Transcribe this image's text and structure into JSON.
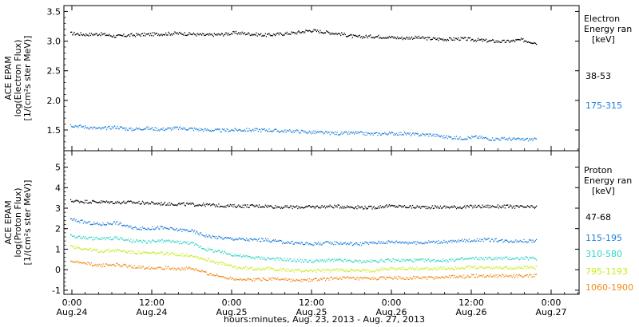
{
  "chart_data": [
    {
      "type": "scatter",
      "panel": "electron",
      "ylabel_lines": [
        "ACE EPAM",
        "log(Electron Flux)",
        "[1/(cm²s ster MeV)]"
      ],
      "ylim": [
        1.15,
        3.6
      ],
      "yticks": [
        1.5,
        2.0,
        2.5,
        3.0,
        3.5
      ],
      "ytick_labels": [
        "1.5",
        "2.0",
        "2.5",
        "3.0",
        "3.5"
      ],
      "legend_title": [
        "Electron",
        "Energy ran",
        "[keV]"
      ],
      "series": [
        {
          "name": "38-53",
          "color": "#000000",
          "values": [
            3.13,
            3.11,
            3.12,
            3.08,
            3.1,
            3.11,
            3.12,
            3.13,
            3.12,
            3.1,
            3.11,
            3.14,
            3.12,
            3.1,
            3.12,
            3.14,
            3.18,
            3.15,
            3.12,
            3.07,
            3.08,
            3.07,
            3.05,
            3.06,
            3.04,
            3.03,
            3.04,
            3.02,
            3.0,
            2.99,
            3.02,
            2.97
          ]
        },
        {
          "name": "175-315",
          "color": "#1E7FD8",
          "values": [
            1.58,
            1.55,
            1.52,
            1.55,
            1.51,
            1.53,
            1.51,
            1.53,
            1.52,
            1.5,
            1.49,
            1.5,
            1.5,
            1.5,
            1.48,
            1.48,
            1.46,
            1.45,
            1.44,
            1.45,
            1.43,
            1.44,
            1.44,
            1.42,
            1.42,
            1.38,
            1.36,
            1.38,
            1.35,
            1.35,
            1.34,
            1.34
          ]
        }
      ]
    },
    {
      "type": "scatter",
      "panel": "proton",
      "ylabel_lines": [
        "ACE EPAM",
        "log(Proton Flux)",
        "[1/(cm²s ster MeV)]"
      ],
      "ylim": [
        -1.2,
        5.8
      ],
      "yticks": [
        -1,
        0,
        1,
        2,
        3,
        4,
        5
      ],
      "ytick_labels": [
        "-1",
        "0",
        "1",
        "2",
        "3",
        "4",
        "5"
      ],
      "legend_title": [
        "Proton",
        "Energy ran",
        "[keV]"
      ],
      "series": [
        {
          "name": "47-68",
          "color": "#000000",
          "values": [
            3.35,
            3.32,
            3.3,
            3.28,
            3.28,
            3.25,
            3.22,
            3.2,
            3.18,
            3.16,
            3.12,
            3.1,
            3.1,
            3.1,
            3.05,
            3.05,
            3.05,
            3.08,
            3.08,
            3.05,
            3.02,
            3.1,
            3.08,
            3.05,
            3.05,
            3.05,
            3.05,
            3.08,
            3.08,
            3.08,
            3.05,
            3.05
          ]
        },
        {
          "name": "115-195",
          "color": "#1E7FD8",
          "values": [
            2.45,
            2.3,
            2.2,
            2.3,
            2.05,
            2.0,
            2.05,
            1.95,
            1.9,
            1.65,
            1.55,
            1.5,
            1.45,
            1.45,
            1.35,
            1.3,
            1.25,
            1.3,
            1.3,
            1.25,
            1.3,
            1.35,
            1.35,
            1.3,
            1.35,
            1.35,
            1.4,
            1.45,
            1.45,
            1.4,
            1.4,
            1.4
          ]
        },
        {
          "name": "310-580",
          "color": "#2FD6C6",
          "values": [
            1.65,
            1.55,
            1.5,
            1.55,
            1.4,
            1.35,
            1.4,
            1.35,
            1.3,
            1.0,
            0.85,
            0.7,
            0.6,
            0.55,
            0.5,
            0.45,
            0.4,
            0.45,
            0.45,
            0.4,
            0.4,
            0.45,
            0.45,
            0.45,
            0.45,
            0.45,
            0.5,
            0.55,
            0.55,
            0.55,
            0.55,
            0.55
          ]
        },
        {
          "name": "795-1193",
          "color": "#C8EC1E",
          "values": [
            1.15,
            1.0,
            0.9,
            0.95,
            0.85,
            0.8,
            0.8,
            0.75,
            0.7,
            0.5,
            0.3,
            0.1,
            0.05,
            0.05,
            0.0,
            -0.05,
            -0.05,
            -0.05,
            0.0,
            -0.05,
            -0.05,
            0.05,
            0.05,
            0.05,
            0.05,
            0.05,
            0.1,
            0.1,
            0.1,
            0.1,
            0.1,
            0.1
          ]
        },
        {
          "name": "1060-1900",
          "color": "#F08A18",
          "values": [
            0.4,
            0.3,
            0.2,
            0.25,
            0.15,
            0.1,
            0.1,
            0.05,
            0.05,
            -0.15,
            -0.35,
            -0.45,
            -0.5,
            -0.45,
            -0.45,
            -0.55,
            -0.5,
            -0.45,
            -0.4,
            -0.45,
            -0.45,
            -0.4,
            -0.4,
            -0.4,
            -0.4,
            -0.35,
            -0.35,
            -0.3,
            -0.3,
            -0.3,
            -0.3,
            -0.3
          ]
        }
      ]
    }
  ],
  "x_axis": {
    "tick_time_labels": [
      "0:00",
      "12:00",
      "0:00",
      "12:00",
      "0:00",
      "12:00",
      "0:00"
    ],
    "tick_date_labels": [
      "Aug.24",
      "Aug.24",
      "Aug.25",
      "Aug.25",
      "Aug.26",
      "Aug.26",
      "Aug.27"
    ],
    "xlabel": "hours:minutes, Aug. 23, 2013 - Aug. 27, 2013"
  }
}
